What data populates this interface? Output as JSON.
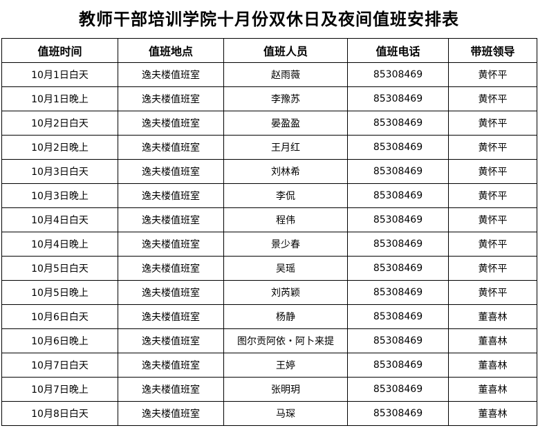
{
  "title": "教师干部培训学院十月份双休日及夜间值班安排表",
  "columns": [
    "值班时间",
    "值班地点",
    "值班人员",
    "值班电话",
    "带班领导"
  ],
  "rows": [
    [
      "10月1日白天",
      "逸夫楼值班室",
      "赵雨薇",
      "85308469",
      "黄怀平"
    ],
    [
      "10月1日晚上",
      "逸夫楼值班室",
      "李豫苏",
      "85308469",
      "黄怀平"
    ],
    [
      "10月2日白天",
      "逸夫楼值班室",
      "晏盈盈",
      "85308469",
      "黄怀平"
    ],
    [
      "10月2日晚上",
      "逸夫楼值班室",
      "王月红",
      "85308469",
      "黄怀平"
    ],
    [
      "10月3日白天",
      "逸夫楼值班室",
      "刘林希",
      "85308469",
      "黄怀平"
    ],
    [
      "10月3日晚上",
      "逸夫楼值班室",
      "李侃",
      "85308469",
      "黄怀平"
    ],
    [
      "10月4日白天",
      "逸夫楼值班室",
      "程伟",
      "85308469",
      "黄怀平"
    ],
    [
      "10月4日晚上",
      "逸夫楼值班室",
      "景少春",
      "85308469",
      "黄怀平"
    ],
    [
      "10月5日白天",
      "逸夫楼值班室",
      "吴瑶",
      "85308469",
      "黄怀平"
    ],
    [
      "10月5日晚上",
      "逸夫楼值班室",
      "刘芮颖",
      "85308469",
      "黄怀平"
    ],
    [
      "10月6日白天",
      "逸夫楼值班室",
      "杨静",
      "85308469",
      "董喜林"
    ],
    [
      "10月6日晚上",
      "逸夫楼值班室",
      "图尔贡阿依・阿卜来提",
      "85308469",
      "董喜林"
    ],
    [
      "10月7日白天",
      "逸夫楼值班室",
      "王婷",
      "85308469",
      "董喜林"
    ],
    [
      "10月7日晚上",
      "逸夫楼值班室",
      "张明玥",
      "85308469",
      "董喜林"
    ],
    [
      "10月8日白天",
      "逸夫楼值班室",
      "马琛",
      "85308469",
      "董喜林"
    ]
  ]
}
